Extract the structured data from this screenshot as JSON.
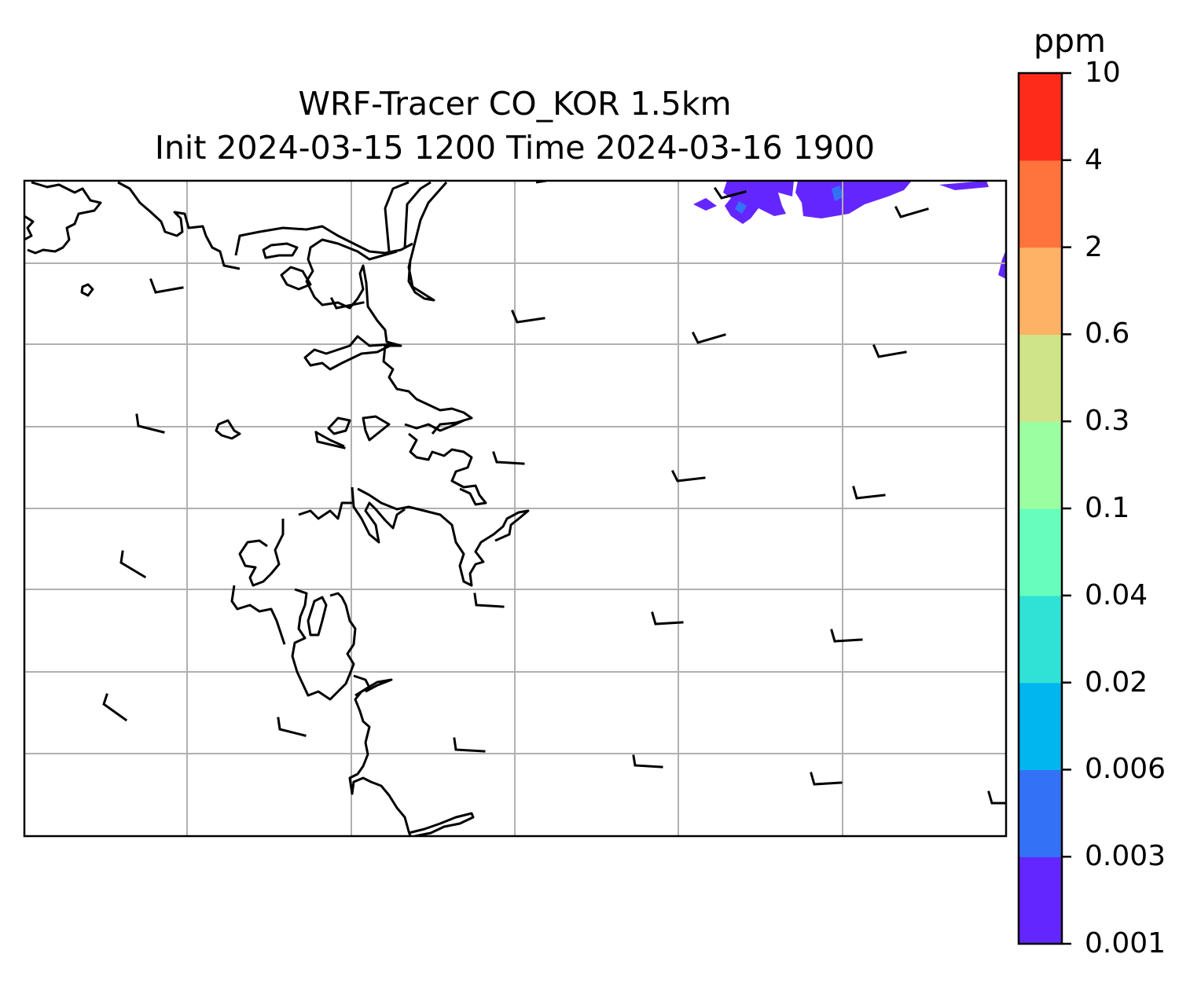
{
  "title": {
    "line1": "WRF-Tracer CO_KOR 1.5km",
    "line2": "Init 2024-03-15 1200 Time 2024-03-16 1900"
  },
  "colorbar": {
    "unit": "ppm",
    "levels": [
      "0.001",
      "0.003",
      "0.006",
      "0.02",
      "0.04",
      "0.1",
      "0.3",
      "0.6",
      "2",
      "4",
      "10"
    ],
    "colors": [
      "#6426ff",
      "#3372f6",
      "#01b5ee",
      "#30e2d5",
      "#67fdbd",
      "#9bfea0",
      "#cfe388",
      "#feb265",
      "#ff733c",
      "#fe2a1a"
    ]
  },
  "map": {
    "gridlines": true,
    "grid_color": "#b0b0b0",
    "coastline_color": "#000000",
    "tracer_color_main": "#6426ff",
    "tracer_color_high": "#3372f6",
    "wind_barbs": "calm to light, roughly westerly"
  }
}
